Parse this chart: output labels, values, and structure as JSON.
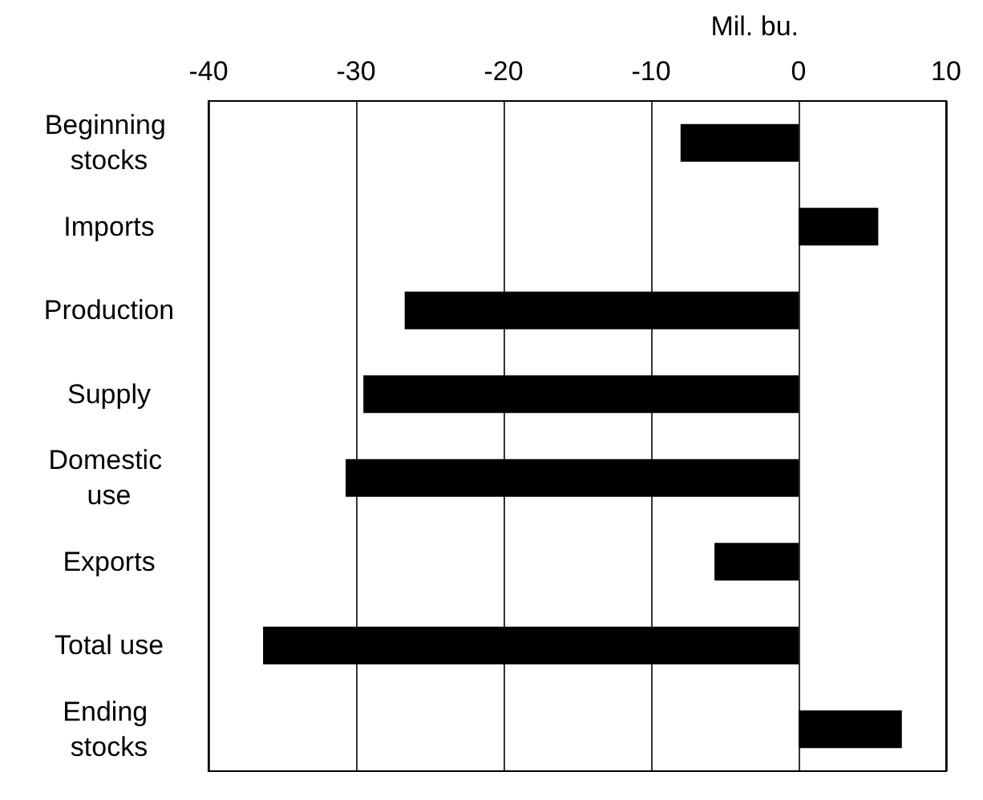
{
  "chart_data": {
    "type": "bar",
    "orientation": "horizontal",
    "ylabel": "Mil. bu.",
    "categories": [
      "Beginning stocks",
      "Imports",
      "Production",
      "Supply",
      "Domestic use",
      "Exports",
      "Total use",
      "Ending stocks"
    ],
    "values": [
      -8.0,
      5.4,
      -26.7,
      -29.5,
      -30.7,
      -5.7,
      -36.3,
      7.0
    ],
    "color": "#000000",
    "xlim": [
      -40,
      10
    ],
    "xticks": [
      -40,
      -30,
      -20,
      -10,
      0,
      10
    ],
    "grid": "x"
  }
}
